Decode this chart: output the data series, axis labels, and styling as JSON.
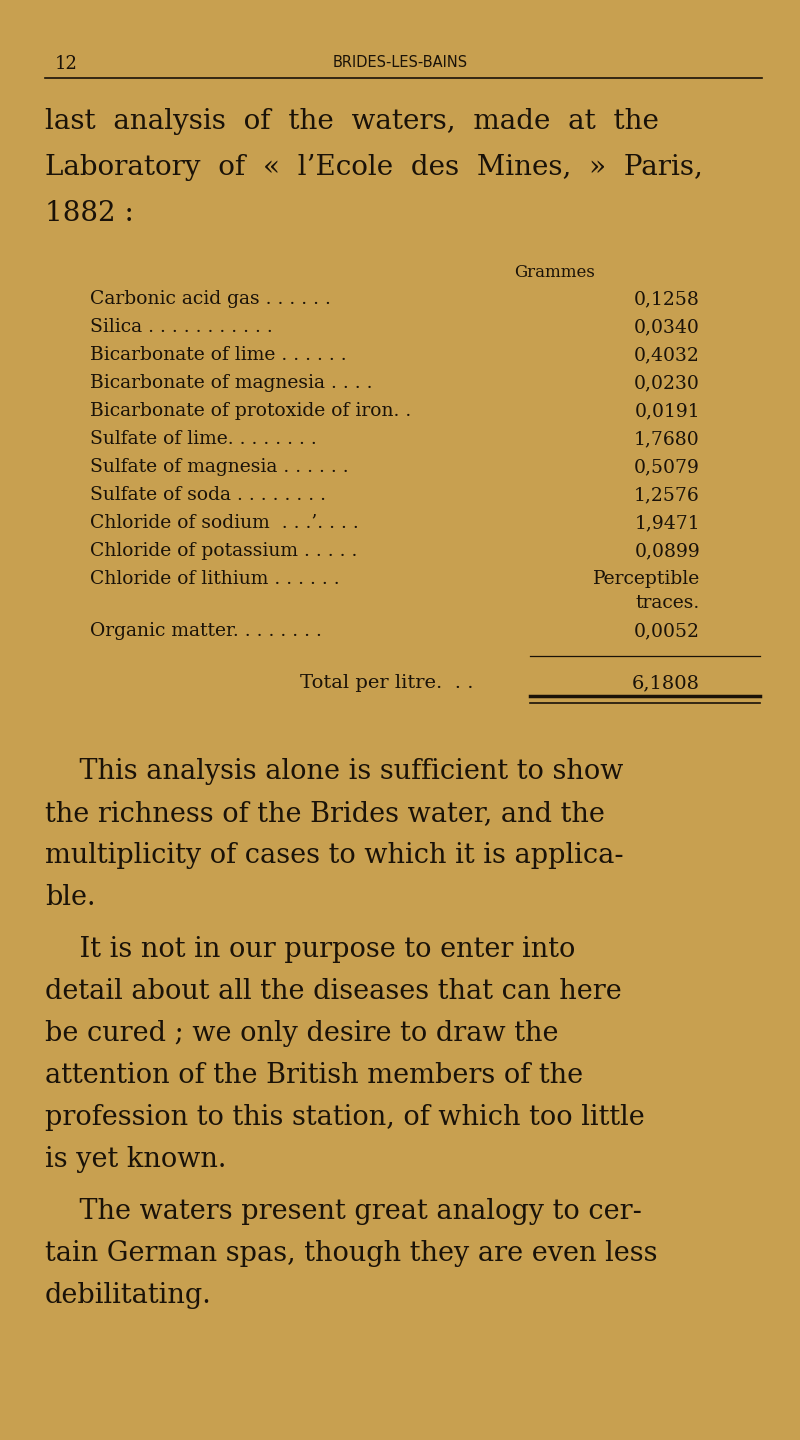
{
  "bg_color": "#c8a050",
  "text_color": "#1a1208",
  "page_number": "12",
  "header": "BRIDES-LES-BAINS",
  "intro_lines": [
    "last  analysis  of  the  waters,  made  at  the",
    "Laboratory  of  «  l’Ecole  des  Mines,  »  Paris,",
    "1882 :"
  ],
  "grammes_label": "Grammes",
  "table_rows": [
    {
      "label": "Carbonic acid gas . . . . . .",
      "value": "0,1258"
    },
    {
      "label": "Silica . . . . . . . . . . .",
      "value": "0,0340"
    },
    {
      "label": "Bicarbonate of lime . . . . . .",
      "value": "0,4032"
    },
    {
      "label": "Bicarbonate of magnesia . . . .",
      "value": "0,0230"
    },
    {
      "label": "Bicarbonate of protoxide of iron. .",
      "value": "0,0191"
    },
    {
      "label": "Sulfate of lime. . . . . . . .",
      "value": "1,7680"
    },
    {
      "label": "Sulfate of magnesia . . . . . .",
      "value": "0,5079"
    },
    {
      "label": "Sulfate of soda . . . . . . . .",
      "value": "1,2576"
    },
    {
      "label": "Chloride of sodium  . . .’. . . .",
      "value": "1,9471"
    },
    {
      "label": "Chloride of potassium . . . . .",
      "value": "0,0899"
    },
    {
      "label": "Chloride of lithium . . . . . .",
      "value": "Perceptible\ntraces."
    },
    {
      "label": "Organic matter. . . . . . . .",
      "value": "0,0052"
    }
  ],
  "total_label": "Total per litre.  . .",
  "total_value": "6,1808",
  "para1": "    This analysis alone is sufficient to show\nthe richness of the Brides water, and the\nmultiplicity of cases to which it is applica-\nble.",
  "para2": "    It is not in our purpose to enter into\ndetail about all the diseases that can here\nbe cured ; we only desire to draw the\nattention of the British members of the\nprofession to this station, of which too little\nis yet known.",
  "para3": "    The waters present great analogy to cer-\ntain German spas, though they are even less\ndebilitating.",
  "header_fontsize": 10.5,
  "page_num_fontsize": 13,
  "intro_fontsize": 20,
  "table_fontsize": 13.5,
  "grammes_fontsize": 12,
  "total_fontsize": 14,
  "para_fontsize": 19.5
}
